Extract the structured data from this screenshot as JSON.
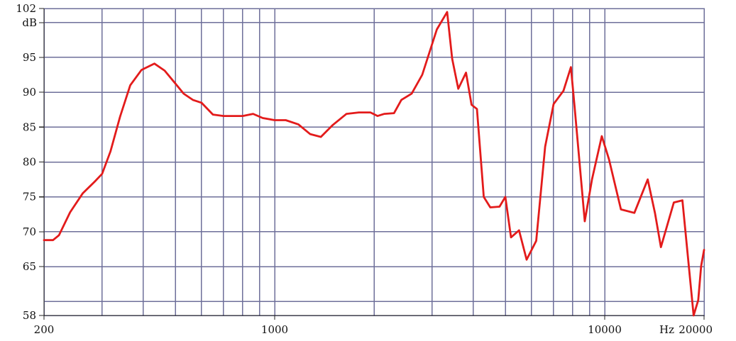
{
  "chart_data": {
    "type": "line",
    "title": "",
    "xlabel": "",
    "ylabel": "",
    "x_scale": "log",
    "xlim": [
      200,
      20000
    ],
    "ylim": [
      58,
      102
    ],
    "grid": true,
    "legend": "none",
    "x_unit": "Hz",
    "y_unit": "dB",
    "x_ticks": [
      {
        "value": 200,
        "label": "200"
      },
      {
        "value": 1000,
        "label": "1000"
      },
      {
        "value": 10000,
        "label": "10000"
      },
      {
        "value": 20000,
        "label": "20000"
      }
    ],
    "x_grid": [
      300,
      400,
      500,
      600,
      700,
      800,
      900,
      1000,
      2000,
      3000,
      4000,
      5000,
      6000,
      7000,
      8000,
      9000,
      10000
    ],
    "y_ticks": [
      {
        "value": 58,
        "label": "58"
      },
      {
        "value": 65,
        "label": "65"
      },
      {
        "value": 70,
        "label": "70"
      },
      {
        "value": 75,
        "label": "75"
      },
      {
        "value": 80,
        "label": "80"
      },
      {
        "value": 85,
        "label": "85"
      },
      {
        "value": 90,
        "label": "90"
      },
      {
        "value": 95,
        "label": "95"
      },
      {
        "value": 102,
        "label": "102"
      }
    ],
    "y_grid": [
      60,
      65,
      70,
      75,
      80,
      85,
      90,
      95,
      100
    ],
    "series": [
      {
        "color": "#e31b1b",
        "x": [
          200,
          213,
          222,
          240,
          262,
          285,
          300,
          318,
          340,
          365,
          395,
          432,
          464,
          495,
          530,
          565,
          600,
          650,
          700,
          800,
          860,
          920,
          1000,
          1080,
          1180,
          1280,
          1380,
          1500,
          1650,
          1800,
          1950,
          2050,
          2150,
          2300,
          2420,
          2600,
          2800,
          3100,
          3330,
          3450,
          3600,
          3800,
          3950,
          4100,
          4300,
          4500,
          4800,
          5000,
          5200,
          5500,
          5800,
          6200,
          6600,
          7000,
          7500,
          7900,
          8100,
          8700,
          9150,
          9800,
          10300,
          11200,
          12300,
          13500,
          14200,
          14800,
          16200,
          17200,
          18600,
          19200,
          19600,
          20000
        ],
        "values": [
          68.8,
          68.8,
          69.5,
          72.8,
          75.5,
          77.2,
          78.3,
          81.5,
          86.5,
          91.0,
          93.2,
          94.1,
          93.1,
          91.5,
          89.8,
          88.9,
          88.5,
          86.8,
          86.6,
          86.6,
          86.9,
          86.3,
          86.0,
          86.0,
          85.4,
          84.0,
          83.6,
          85.3,
          86.9,
          87.1,
          87.1,
          86.6,
          86.9,
          87.0,
          88.9,
          89.8,
          92.5,
          99.0,
          101.5,
          94.8,
          90.5,
          92.8,
          88.2,
          87.6,
          75.0,
          73.5,
          73.6,
          75.0,
          69.2,
          70.2,
          66.0,
          68.7,
          82.2,
          88.3,
          90.2,
          93.6,
          88.0,
          71.5,
          77.5,
          83.7,
          80.4,
          73.2,
          72.7,
          77.5,
          72.7,
          67.8,
          74.2,
          74.5,
          58.0,
          60.2,
          65.1,
          67.4
        ]
      }
    ]
  }
}
